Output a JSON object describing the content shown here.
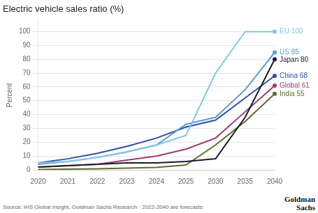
{
  "chart_data": {
    "type": "line",
    "title": "Electric vehicle sales ratio (%)",
    "ylabel": "Percent",
    "categories": [
      "2020",
      "2021",
      "2022",
      "2023",
      "2024",
      "2025",
      "2030",
      "2035",
      "2040"
    ],
    "series": [
      {
        "name": "EU 100",
        "color": "#7ec8e3",
        "values": [
          5,
          6,
          9,
          13,
          18,
          25,
          70,
          100,
          100
        ]
      },
      {
        "name": "US 85",
        "color": "#5b9bd5",
        "values": [
          4,
          6,
          9,
          13,
          18,
          33,
          38,
          58,
          85
        ]
      },
      {
        "name": "Japan 80",
        "color": "#1a1a2e",
        "values": [
          2,
          3,
          4,
          5,
          5,
          6,
          8,
          38,
          80
        ]
      },
      {
        "name": "China 68",
        "color": "#2e4fa3",
        "values": [
          5,
          8,
          12,
          17,
          23,
          31,
          36,
          52,
          68
        ]
      },
      {
        "name": "Global 61",
        "color": "#9b3d6a",
        "values": [
          2,
          3,
          4,
          7,
          10,
          15,
          23,
          42,
          61
        ]
      },
      {
        "name": "India 55",
        "color": "#5a6e2a",
        "values": [
          0.3,
          0.5,
          0.8,
          1.2,
          1.8,
          3.5,
          18,
          35,
          55
        ]
      }
    ],
    "ylim": [
      0,
      108
    ],
    "yticks": [
      0,
      10,
      20,
      30,
      40,
      50,
      60,
      70,
      80,
      90,
      100
    ],
    "grid": true,
    "annotations": [
      "Source: IHS Global Insight, Goldman Sachs Research · 2022-2040 are forecasts",
      "Goldman\nSachs"
    ]
  }
}
